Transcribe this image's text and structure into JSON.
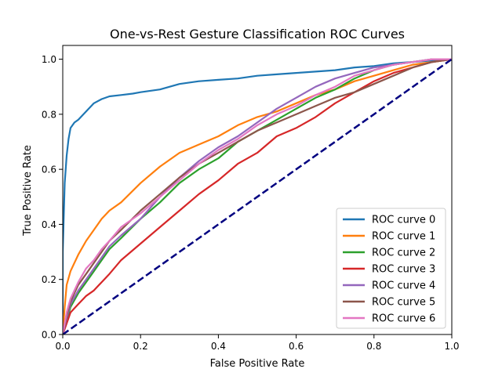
{
  "chart_data": {
    "type": "line",
    "title": "One-vs-Rest Gesture Classification ROC Curves",
    "xlabel": "False Positive Rate",
    "ylabel": "True Positive Rate",
    "xlim": [
      0,
      1
    ],
    "ylim": [
      0,
      1.05
    ],
    "xticks": [
      "0.0",
      "0.2",
      "0.4",
      "0.6",
      "0.8",
      "1.0"
    ],
    "yticks": [
      "0.0",
      "0.2",
      "0.4",
      "0.6",
      "0.8",
      "1.0"
    ],
    "grid": false,
    "legend_position": "lower-right",
    "reference_line": {
      "x": [
        0,
        1
      ],
      "y": [
        0,
        1
      ],
      "color": "#000080",
      "style": "dashed"
    },
    "series": [
      {
        "name": "ROC curve 0",
        "color": "#1f77b4",
        "x": [
          0,
          0.0,
          0.005,
          0.01,
          0.015,
          0.02,
          0.03,
          0.04,
          0.06,
          0.08,
          0.1,
          0.12,
          0.15,
          0.18,
          0.2,
          0.25,
          0.3,
          0.35,
          0.4,
          0.45,
          0.5,
          0.55,
          0.6,
          0.65,
          0.7,
          0.75,
          0.8,
          0.85,
          0.9,
          0.95,
          1.0
        ],
        "y": [
          0,
          0.3,
          0.55,
          0.65,
          0.71,
          0.75,
          0.77,
          0.78,
          0.81,
          0.84,
          0.855,
          0.865,
          0.87,
          0.875,
          0.88,
          0.89,
          0.91,
          0.92,
          0.925,
          0.93,
          0.94,
          0.945,
          0.95,
          0.955,
          0.96,
          0.97,
          0.975,
          0.985,
          0.99,
          0.995,
          1.0
        ]
      },
      {
        "name": "ROC curve 1",
        "color": "#ff7f0e",
        "x": [
          0,
          0.005,
          0.01,
          0.02,
          0.04,
          0.06,
          0.08,
          0.1,
          0.12,
          0.15,
          0.2,
          0.25,
          0.3,
          0.35,
          0.4,
          0.45,
          0.5,
          0.55,
          0.6,
          0.65,
          0.7,
          0.75,
          0.8,
          0.85,
          0.9,
          0.95,
          1.0
        ],
        "y": [
          0,
          0.1,
          0.18,
          0.23,
          0.29,
          0.34,
          0.38,
          0.42,
          0.45,
          0.48,
          0.55,
          0.61,
          0.66,
          0.69,
          0.72,
          0.76,
          0.79,
          0.81,
          0.84,
          0.87,
          0.89,
          0.92,
          0.94,
          0.96,
          0.98,
          0.99,
          1.0
        ]
      },
      {
        "name": "ROC curve 2",
        "color": "#2ca02c",
        "x": [
          0,
          0.01,
          0.02,
          0.04,
          0.06,
          0.08,
          0.1,
          0.12,
          0.15,
          0.2,
          0.25,
          0.3,
          0.35,
          0.4,
          0.45,
          0.5,
          0.55,
          0.6,
          0.65,
          0.7,
          0.75,
          0.8,
          0.85,
          0.9,
          0.95,
          1.0
        ],
        "y": [
          0,
          0.05,
          0.1,
          0.15,
          0.19,
          0.23,
          0.27,
          0.31,
          0.35,
          0.42,
          0.48,
          0.55,
          0.6,
          0.64,
          0.7,
          0.74,
          0.78,
          0.82,
          0.86,
          0.89,
          0.93,
          0.96,
          0.98,
          0.99,
          1.0,
          1.0
        ]
      },
      {
        "name": "ROC curve 3",
        "color": "#d62728",
        "x": [
          0,
          0.01,
          0.02,
          0.04,
          0.06,
          0.08,
          0.1,
          0.12,
          0.15,
          0.2,
          0.25,
          0.3,
          0.35,
          0.4,
          0.45,
          0.5,
          0.55,
          0.6,
          0.65,
          0.7,
          0.75,
          0.8,
          0.85,
          0.9,
          0.95,
          1.0
        ],
        "y": [
          0,
          0.04,
          0.08,
          0.11,
          0.14,
          0.16,
          0.19,
          0.22,
          0.27,
          0.33,
          0.39,
          0.45,
          0.51,
          0.56,
          0.62,
          0.66,
          0.72,
          0.75,
          0.79,
          0.84,
          0.88,
          0.92,
          0.95,
          0.97,
          0.99,
          1.0
        ]
      },
      {
        "name": "ROC curve 4",
        "color": "#9467bd",
        "x": [
          0,
          0.01,
          0.02,
          0.04,
          0.06,
          0.08,
          0.1,
          0.12,
          0.15,
          0.2,
          0.25,
          0.3,
          0.35,
          0.4,
          0.45,
          0.5,
          0.55,
          0.6,
          0.65,
          0.7,
          0.75,
          0.8,
          0.85,
          0.9,
          0.95,
          1.0
        ],
        "y": [
          0,
          0.06,
          0.11,
          0.16,
          0.2,
          0.24,
          0.28,
          0.32,
          0.36,
          0.42,
          0.5,
          0.57,
          0.63,
          0.68,
          0.72,
          0.77,
          0.82,
          0.86,
          0.9,
          0.93,
          0.95,
          0.97,
          0.98,
          0.99,
          1.0,
          1.0
        ]
      },
      {
        "name": "ROC curve 5",
        "color": "#8c564b",
        "x": [
          0,
          0.01,
          0.02,
          0.04,
          0.06,
          0.08,
          0.1,
          0.12,
          0.15,
          0.2,
          0.25,
          0.3,
          0.35,
          0.4,
          0.45,
          0.5,
          0.55,
          0.6,
          0.65,
          0.7,
          0.75,
          0.8,
          0.85,
          0.9,
          0.95,
          1.0
        ],
        "y": [
          0,
          0.07,
          0.12,
          0.18,
          0.22,
          0.26,
          0.3,
          0.34,
          0.38,
          0.45,
          0.51,
          0.57,
          0.62,
          0.66,
          0.7,
          0.74,
          0.77,
          0.8,
          0.83,
          0.86,
          0.88,
          0.91,
          0.94,
          0.97,
          0.99,
          1.0
        ]
      },
      {
        "name": "ROC curve 6",
        "color": "#e377c2",
        "x": [
          0,
          0.01,
          0.02,
          0.04,
          0.06,
          0.08,
          0.1,
          0.12,
          0.15,
          0.2,
          0.25,
          0.3,
          0.35,
          0.4,
          0.45,
          0.5,
          0.55,
          0.6,
          0.65,
          0.7,
          0.75,
          0.8,
          0.85,
          0.9,
          0.95,
          1.0
        ],
        "y": [
          0,
          0.08,
          0.13,
          0.19,
          0.24,
          0.27,
          0.31,
          0.34,
          0.39,
          0.44,
          0.5,
          0.56,
          0.62,
          0.67,
          0.71,
          0.76,
          0.8,
          0.83,
          0.87,
          0.9,
          0.94,
          0.96,
          0.98,
          0.99,
          1.0,
          1.0
        ]
      }
    ]
  }
}
